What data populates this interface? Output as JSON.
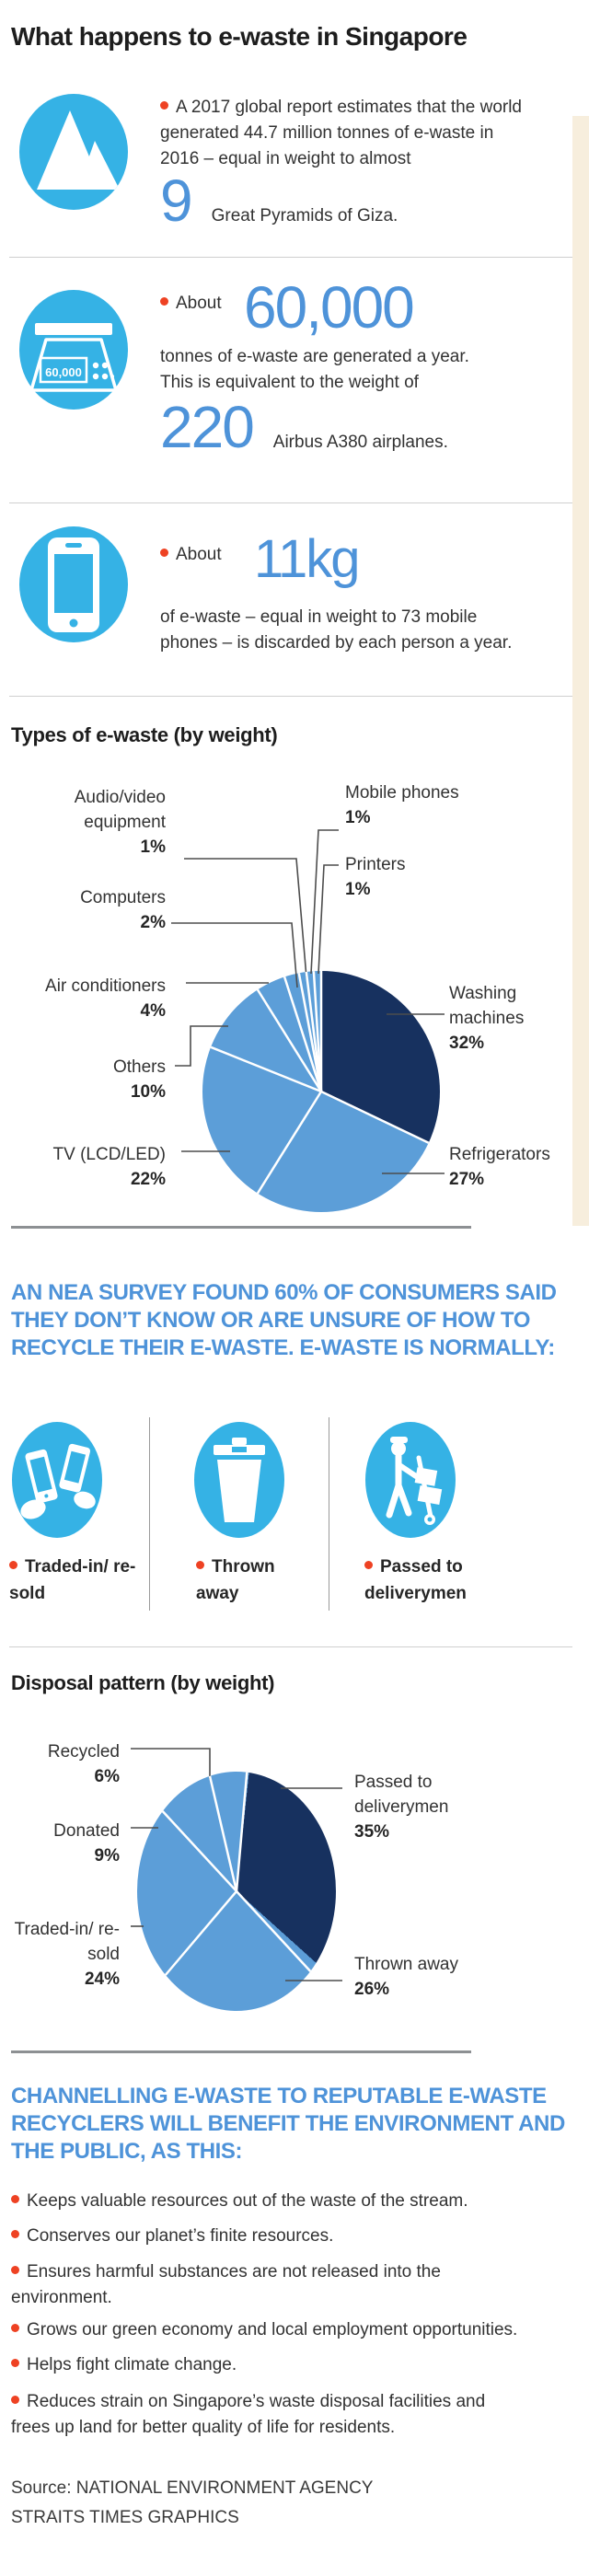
{
  "title": "What happens to e-waste in Singapore",
  "colors": {
    "cyan": "#35b2e5",
    "accent_blue": "#4e93d9",
    "navy": "#17315f",
    "light_blue": "#5c9ed8",
    "red": "#ee4223"
  },
  "stats": [
    {
      "icon": "pyramids-icon",
      "lines": [
        "A 2017 global report estimates that the world",
        "generated 44.7 million tonnes of e-waste in",
        "2016 – equal in weight to almost"
      ],
      "big": "9",
      "big_suffix": "Great Pyramids of Giza."
    },
    {
      "icon": "weighing-scale-icon",
      "pre": "About",
      "big": "60,000",
      "scale_display": "60,000",
      "lines": [
        "tonnes of e-waste are generated a year.",
        "This is equivalent to the weight of"
      ],
      "big2": "220",
      "big2_suffix": "Airbus A380 airplanes."
    },
    {
      "icon": "mobile-phone-icon",
      "pre": "About",
      "big": "11kg",
      "lines": [
        "of e-waste – equal in weight to 73 mobile",
        "phones – is discarded by each person a year."
      ]
    }
  ],
  "survey_heading_lines": [
    "AN NEA SURVEY FOUND 60% OF CONSUMERS SAID",
    "THEY DON’T KNOW OR ARE UNSURE OF HOW TO",
    "RECYCLE THEIR E-WASTE. E-WASTE IS NORMALLY:"
  ],
  "methods": [
    {
      "icon": "trade-in-phones-icon",
      "label": "Traded-in/ re-sold"
    },
    {
      "icon": "trash-bin-icon",
      "label": "Thrown away"
    },
    {
      "icon": "deliveryman-trolley-icon",
      "label": "Passed to deliverymen"
    }
  ],
  "chart_data": [
    {
      "type": "pie",
      "title": "Types of e-waste (by weight)",
      "start_angle": 0,
      "legend_position": "callout-labels",
      "slices": [
        {
          "label": "Washing machines",
          "pct": 32,
          "pct_label": "32%",
          "color": "navy"
        },
        {
          "label": "Refrigerators",
          "pct": 27,
          "pct_label": "27%",
          "color": "light_blue"
        },
        {
          "label": "TV (LCD/LED)",
          "pct": 22,
          "pct_label": "22%",
          "color": "light_blue"
        },
        {
          "label": "Others",
          "pct": 10,
          "pct_label": "10%",
          "color": "light_blue"
        },
        {
          "label": "Air conditioners",
          "pct": 4,
          "pct_label": "4%",
          "color": "light_blue"
        },
        {
          "label": "Computers",
          "pct": 2,
          "pct_label": "2%",
          "color": "light_blue"
        },
        {
          "label": "Audio/video equipment",
          "pct": 1,
          "pct_label": "1%",
          "color": "light_blue"
        },
        {
          "label": "Mobile phones",
          "pct": 1,
          "pct_label": "1%",
          "color": "light_blue"
        },
        {
          "label": "Printers",
          "pct": 1,
          "pct_label": "1%",
          "color": "light_blue"
        }
      ]
    },
    {
      "type": "pie",
      "title": "Disposal pattern (by weight)",
      "start_angle": 6,
      "legend_position": "callout-labels",
      "slices": [
        {
          "label": "Passed to deliverymen",
          "pct": 35,
          "pct_label": "35%",
          "color": "navy"
        },
        {
          "label": "Thrown away",
          "pct": 26,
          "pct_label": "26%",
          "color": "light_blue"
        },
        {
          "label": "Traded-in/ re-sold",
          "pct": 24,
          "pct_label": "24%",
          "color": "light_blue"
        },
        {
          "label": "Donated",
          "pct": 9,
          "pct_label": "9%",
          "color": "light_blue"
        },
        {
          "label": "Recycled",
          "pct": 6,
          "pct_label": "6%",
          "color": "light_blue"
        }
      ]
    }
  ],
  "benefits_heading_lines": [
    "CHANNELLING E-WASTE TO REPUTABLE E-WASTE",
    "RECYCLERS WILL BENEFIT THE ENVIRONMENT AND",
    "THE PUBLIC, AS THIS:"
  ],
  "benefits": [
    "Keeps valuable resources out of the waste of the stream.",
    "Conserves our planet’s finite resources.",
    "Ensures harmful substances are not released into the environment.",
    "Grows our green economy and local employment opportunities.",
    "Helps fight climate change.",
    "Reduces strain on Singapore’s waste disposal facilities and frees up land for better quality of life for residents."
  ],
  "source_lines": [
    "Source: NATIONAL ENVIRONMENT AGENCY",
    "STRAITS TIMES GRAPHICS"
  ]
}
